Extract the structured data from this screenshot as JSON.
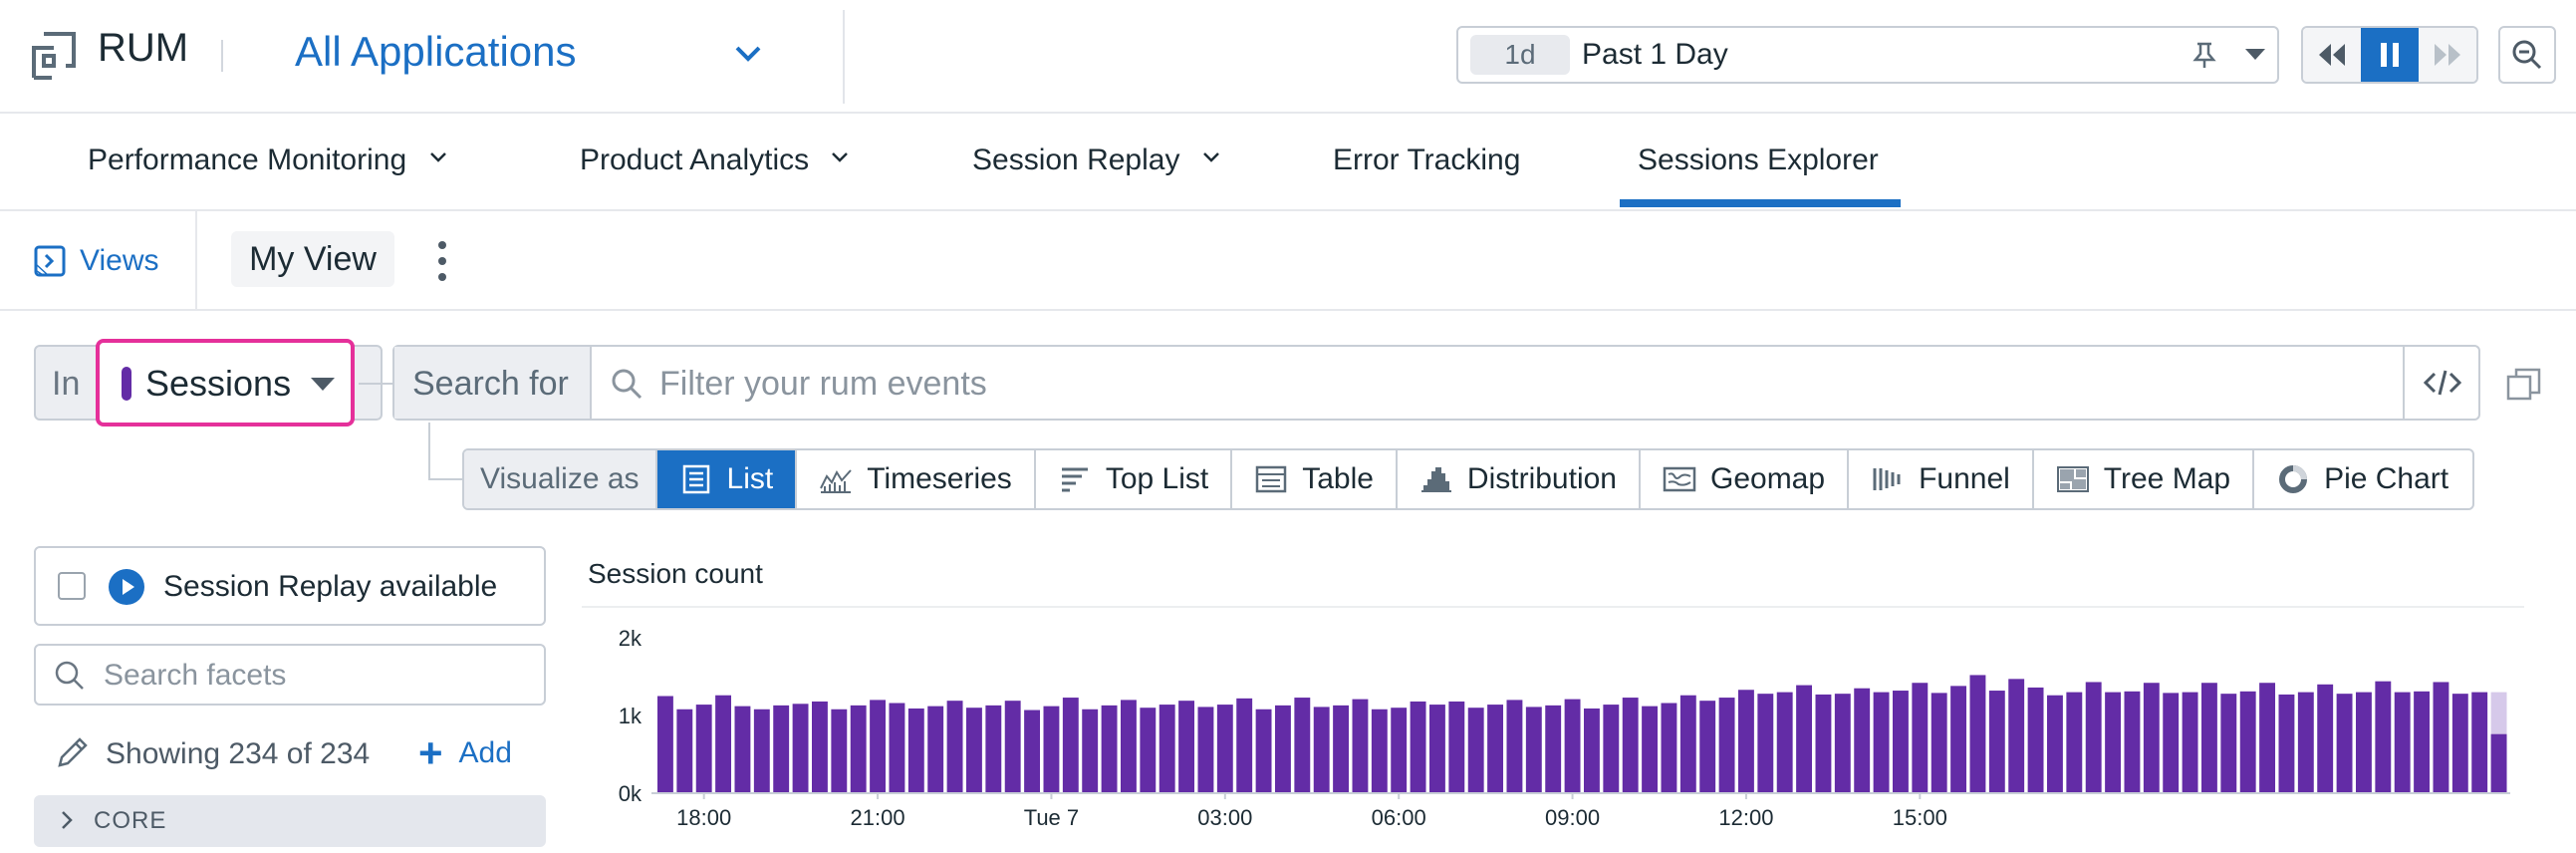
{
  "header": {
    "app_name": "RUM",
    "application_selector": "All Applications",
    "time": {
      "badge": "1d",
      "label": "Past 1 Day"
    }
  },
  "nav": {
    "tabs": [
      {
        "label": "Performance Monitoring",
        "dropdown": true
      },
      {
        "label": "Product Analytics",
        "dropdown": true
      },
      {
        "label": "Session Replay",
        "dropdown": true
      },
      {
        "label": "Error Tracking",
        "dropdown": false
      },
      {
        "label": "Sessions Explorer",
        "dropdown": false,
        "active": true
      }
    ]
  },
  "views": {
    "views_label": "Views",
    "current_view": "My View"
  },
  "query": {
    "in_label": "In",
    "data_source": "Sessions",
    "search_for_label": "Search for",
    "search_placeholder": "Filter your rum events"
  },
  "visualize": {
    "label": "Visualize as",
    "options": [
      {
        "label": "List",
        "icon": "list-icon",
        "active": true
      },
      {
        "label": "Timeseries",
        "icon": "timeseries-icon"
      },
      {
        "label": "Top List",
        "icon": "top-list-icon"
      },
      {
        "label": "Table",
        "icon": "table-icon"
      },
      {
        "label": "Distribution",
        "icon": "distribution-icon"
      },
      {
        "label": "Geomap",
        "icon": "geomap-icon"
      },
      {
        "label": "Funnel",
        "icon": "funnel-icon"
      },
      {
        "label": "Tree Map",
        "icon": "tree-map-icon"
      },
      {
        "label": "Pie Chart",
        "icon": "pie-chart-icon"
      }
    ]
  },
  "facets": {
    "session_replay_filter": "Session Replay available",
    "search_placeholder": "Search facets",
    "showing_label": "Showing 234 of 234",
    "add_label": "Add",
    "groups": [
      {
        "label": "CORE",
        "expanded": false
      }
    ]
  },
  "colors": {
    "accent": "#1b6fc4",
    "sessions_purple": "#632ca6",
    "highlight_pink": "#e5309a",
    "partial_bar": "#d6c9ea"
  },
  "chart_data": {
    "type": "bar",
    "title": "Session count",
    "y_ticks": [
      "2k",
      "1k",
      "0k"
    ],
    "ylim": [
      0,
      2000
    ],
    "x_tick_labels": [
      "18:00",
      "21:00",
      "Tue 7",
      "03:00",
      "06:00",
      "09:00",
      "12:00",
      "15:00"
    ],
    "x_tick_bar_index": [
      2,
      11,
      20,
      29,
      38,
      47,
      56,
      65
    ],
    "grid": false,
    "values": [
      1250,
      1080,
      1140,
      1260,
      1120,
      1080,
      1130,
      1150,
      1180,
      1080,
      1130,
      1200,
      1160,
      1090,
      1120,
      1190,
      1100,
      1130,
      1190,
      1070,
      1120,
      1230,
      1080,
      1130,
      1200,
      1100,
      1140,
      1190,
      1110,
      1140,
      1220,
      1080,
      1130,
      1230,
      1110,
      1130,
      1210,
      1080,
      1100,
      1180,
      1140,
      1180,
      1100,
      1140,
      1200,
      1110,
      1130,
      1210,
      1090,
      1140,
      1230,
      1120,
      1160,
      1260,
      1190,
      1230,
      1330,
      1280,
      1300,
      1390,
      1270,
      1280,
      1350,
      1300,
      1320,
      1420,
      1290,
      1380,
      1520,
      1320,
      1470,
      1360,
      1260,
      1300,
      1430,
      1300,
      1310,
      1420,
      1290,
      1300,
      1420,
      1280,
      1310,
      1420,
      1270,
      1300,
      1400,
      1280,
      1300,
      1440,
      1300,
      1310,
      1430,
      1280,
      1300,
      760
    ],
    "partial_last_bar_total": 1300
  }
}
